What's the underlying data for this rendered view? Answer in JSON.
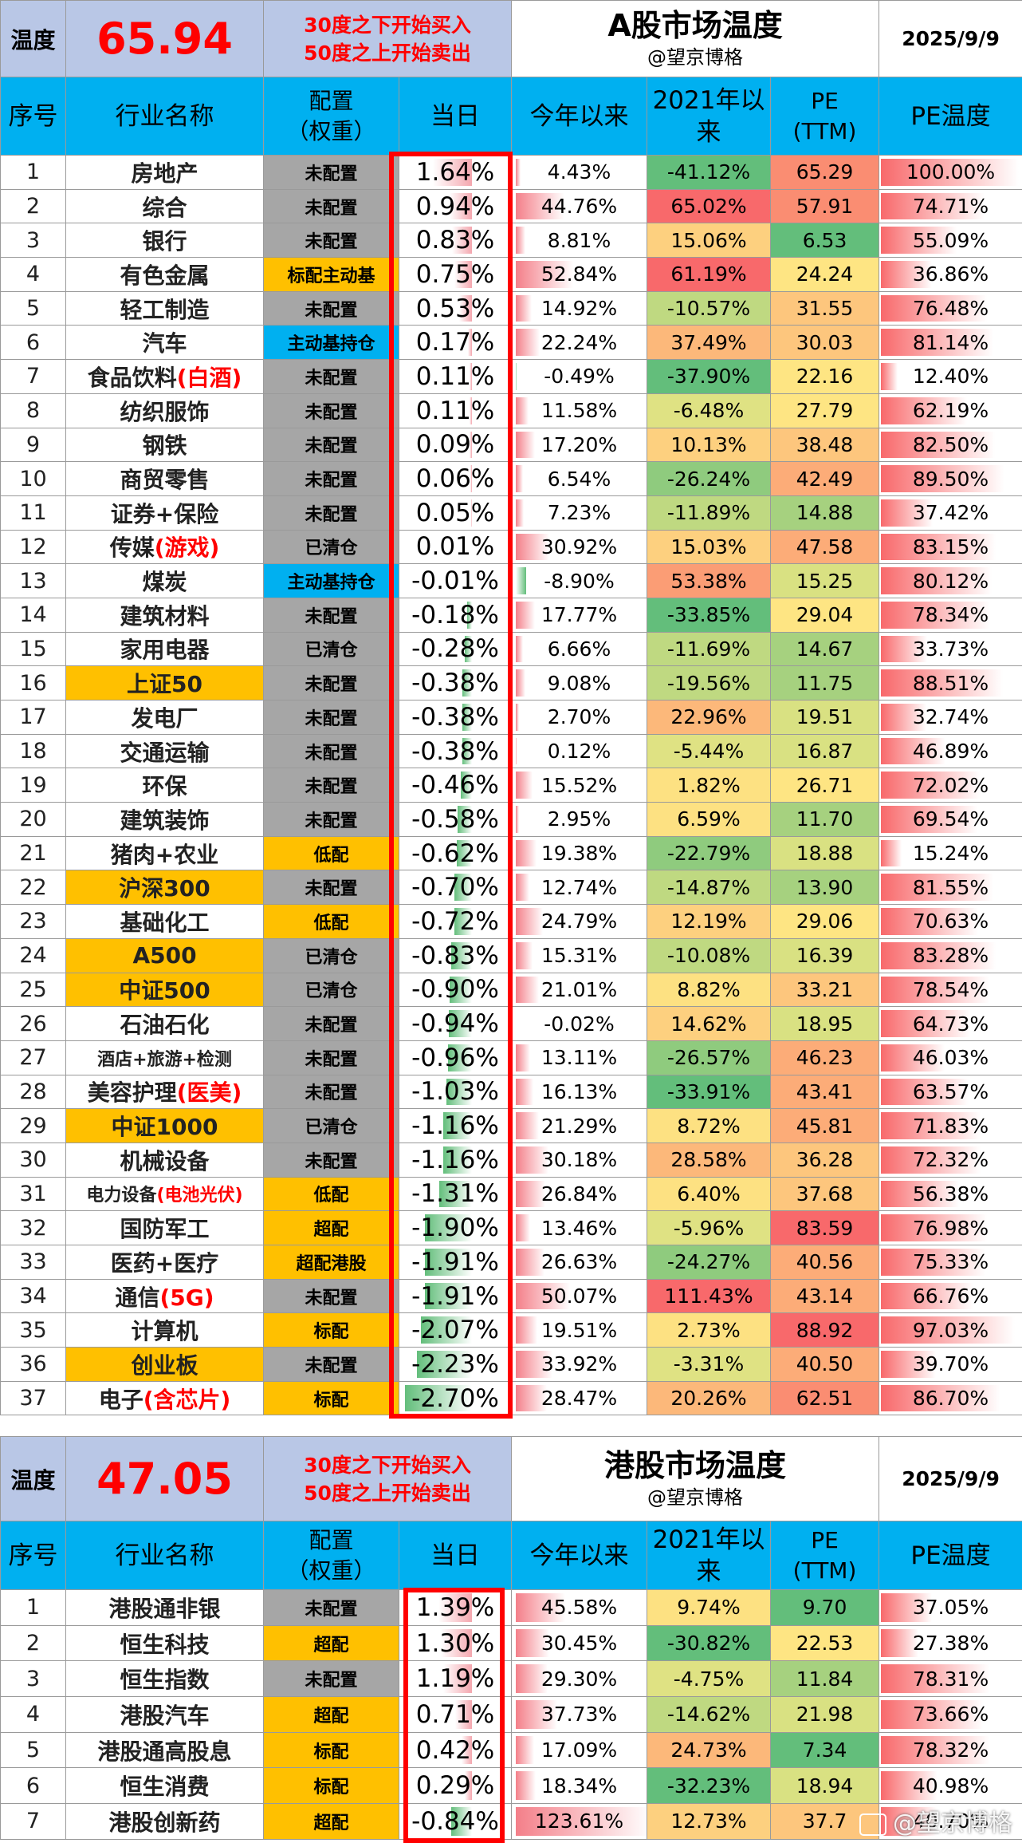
{
  "colors": {
    "header": "#00b0f0",
    "highlight": "#ffc000",
    "grey": "#a6a6a6",
    "title_bg": "#b9c7e6",
    "red": "#ff0000"
  },
  "a_share": {
    "temp_label": "温度",
    "temp_value": "65.94",
    "rule_line1": "30度之下开始买入",
    "rule_line2": "50度之上开始卖出",
    "title": "A股市场温度",
    "author": "@望京博格",
    "date": "2025/9/9",
    "headers": {
      "idx": "序号",
      "name": "行业名称",
      "alloc1": "配置",
      "alloc2": "（权重）",
      "day": "当日",
      "ytd": "今年以来",
      "since1": "2021年以",
      "since2": "来",
      "pe1": "PE",
      "pe2": "(TTM)",
      "pet": "PE温度"
    },
    "rows": [
      {
        "idx": "1",
        "name": "房地产",
        "sub": "",
        "alloc": "未配置",
        "aclass": "",
        "nclass": "",
        "day": "1.64%",
        "ytd": "4.43%",
        "since": "-41.12%",
        "pe": "65.29",
        "pet": "100.00%"
      },
      {
        "idx": "2",
        "name": "综合",
        "sub": "",
        "alloc": "未配置",
        "aclass": "",
        "nclass": "",
        "day": "0.94%",
        "ytd": "44.76%",
        "since": "65.02%",
        "pe": "57.91",
        "pet": "74.71%"
      },
      {
        "idx": "3",
        "name": "银行",
        "sub": "",
        "alloc": "未配置",
        "aclass": "",
        "nclass": "",
        "day": "0.83%",
        "ytd": "8.81%",
        "since": "15.06%",
        "pe": "6.53",
        "pet": "55.09%"
      },
      {
        "idx": "4",
        "name": "有色金属",
        "sub": "",
        "alloc": "标配主动基",
        "aclass": "hl",
        "nclass": "",
        "day": "0.75%",
        "ytd": "52.84%",
        "since": "61.19%",
        "pe": "24.24",
        "pet": "36.86%"
      },
      {
        "idx": "5",
        "name": "轻工制造",
        "sub": "",
        "alloc": "未配置",
        "aclass": "",
        "nclass": "",
        "day": "0.53%",
        "ytd": "14.92%",
        "since": "-10.57%",
        "pe": "31.55",
        "pet": "76.48%"
      },
      {
        "idx": "6",
        "name": "汽车",
        "sub": "",
        "alloc": "主动基持仓",
        "aclass": "blue",
        "nclass": "",
        "day": "0.17%",
        "ytd": "22.24%",
        "since": "37.49%",
        "pe": "30.03",
        "pet": "81.14%"
      },
      {
        "idx": "7",
        "name": "食品饮料",
        "sub": "(白酒)",
        "alloc": "未配置",
        "aclass": "",
        "nclass": "",
        "day": "0.11%",
        "ytd": "-0.49%",
        "since": "-37.90%",
        "pe": "22.16",
        "pet": "12.40%"
      },
      {
        "idx": "8",
        "name": "纺织服饰",
        "sub": "",
        "alloc": "未配置",
        "aclass": "",
        "nclass": "",
        "day": "0.11%",
        "ytd": "11.58%",
        "since": "-6.48%",
        "pe": "27.79",
        "pet": "62.19%"
      },
      {
        "idx": "9",
        "name": "钢铁",
        "sub": "",
        "alloc": "未配置",
        "aclass": "",
        "nclass": "",
        "day": "0.09%",
        "ytd": "17.20%",
        "since": "10.13%",
        "pe": "38.48",
        "pet": "82.50%"
      },
      {
        "idx": "10",
        "name": "商贸零售",
        "sub": "",
        "alloc": "未配置",
        "aclass": "",
        "nclass": "",
        "day": "0.06%",
        "ytd": "6.54%",
        "since": "-26.24%",
        "pe": "42.49",
        "pet": "89.50%"
      },
      {
        "idx": "11",
        "name": "证券+保险",
        "sub": "",
        "alloc": "未配置",
        "aclass": "",
        "nclass": "",
        "day": "0.05%",
        "ytd": "7.23%",
        "since": "-11.89%",
        "pe": "14.88",
        "pet": "37.42%"
      },
      {
        "idx": "12",
        "name": "传媒",
        "sub": "(游戏)",
        "alloc": "已清仓",
        "aclass": "",
        "nclass": "",
        "day": "0.01%",
        "ytd": "30.92%",
        "since": "15.03%",
        "pe": "47.58",
        "pet": "83.15%"
      },
      {
        "idx": "13",
        "name": "煤炭",
        "sub": "",
        "alloc": "主动基持仓",
        "aclass": "blue",
        "nclass": "",
        "day": "-0.01%",
        "ytd": "-8.90%",
        "since": "53.38%",
        "pe": "15.25",
        "pet": "80.12%"
      },
      {
        "idx": "14",
        "name": "建筑材料",
        "sub": "",
        "alloc": "未配置",
        "aclass": "",
        "nclass": "",
        "day": "-0.18%",
        "ytd": "17.77%",
        "since": "-33.85%",
        "pe": "29.04",
        "pet": "78.34%"
      },
      {
        "idx": "15",
        "name": "家用电器",
        "sub": "",
        "alloc": "已清仓",
        "aclass": "",
        "nclass": "",
        "day": "-0.28%",
        "ytd": "6.66%",
        "since": "-11.69%",
        "pe": "14.67",
        "pet": "33.73%"
      },
      {
        "idx": "16",
        "name": "上证50",
        "sub": "",
        "alloc": "未配置",
        "aclass": "",
        "nclass": "hl",
        "day": "-0.38%",
        "ytd": "9.08%",
        "since": "-19.56%",
        "pe": "11.75",
        "pet": "88.51%"
      },
      {
        "idx": "17",
        "name": "发电厂",
        "sub": "",
        "alloc": "未配置",
        "aclass": "",
        "nclass": "",
        "day": "-0.38%",
        "ytd": "2.70%",
        "since": "22.96%",
        "pe": "19.51",
        "pet": "32.74%"
      },
      {
        "idx": "18",
        "name": "交通运输",
        "sub": "",
        "alloc": "未配置",
        "aclass": "",
        "nclass": "",
        "day": "-0.38%",
        "ytd": "0.12%",
        "since": "-5.44%",
        "pe": "16.87",
        "pet": "46.89%"
      },
      {
        "idx": "19",
        "name": "环保",
        "sub": "",
        "alloc": "未配置",
        "aclass": "",
        "nclass": "",
        "day": "-0.46%",
        "ytd": "15.52%",
        "since": "1.82%",
        "pe": "26.71",
        "pet": "72.02%"
      },
      {
        "idx": "20",
        "name": "建筑装饰",
        "sub": "",
        "alloc": "未配置",
        "aclass": "",
        "nclass": "",
        "day": "-0.58%",
        "ytd": "2.95%",
        "since": "6.59%",
        "pe": "11.70",
        "pet": "69.54%"
      },
      {
        "idx": "21",
        "name": "猪肉+农业",
        "sub": "",
        "alloc": "低配",
        "aclass": "hl",
        "nclass": "",
        "day": "-0.62%",
        "ytd": "19.38%",
        "since": "-22.79%",
        "pe": "18.88",
        "pet": "15.24%"
      },
      {
        "idx": "22",
        "name": "沪深300",
        "sub": "",
        "alloc": "未配置",
        "aclass": "",
        "nclass": "hl",
        "day": "-0.70%",
        "ytd": "12.74%",
        "since": "-14.87%",
        "pe": "13.90",
        "pet": "81.55%"
      },
      {
        "idx": "23",
        "name": "基础化工",
        "sub": "",
        "alloc": "低配",
        "aclass": "hl",
        "nclass": "",
        "day": "-0.72%",
        "ytd": "24.79%",
        "since": "12.19%",
        "pe": "29.06",
        "pet": "70.63%"
      },
      {
        "idx": "24",
        "name": "A500",
        "sub": "",
        "alloc": "已清仓",
        "aclass": "",
        "nclass": "hl",
        "day": "-0.83%",
        "ytd": "15.31%",
        "since": "-10.08%",
        "pe": "16.39",
        "pet": "83.28%"
      },
      {
        "idx": "25",
        "name": "中证500",
        "sub": "",
        "alloc": "已清仓",
        "aclass": "",
        "nclass": "hl",
        "day": "-0.90%",
        "ytd": "21.01%",
        "since": "8.82%",
        "pe": "33.21",
        "pet": "78.54%"
      },
      {
        "idx": "26",
        "name": "石油石化",
        "sub": "",
        "alloc": "未配置",
        "aclass": "",
        "nclass": "",
        "day": "-0.94%",
        "ytd": "-0.02%",
        "since": "14.62%",
        "pe": "18.95",
        "pet": "64.73%"
      },
      {
        "idx": "27",
        "name": "酒店+旅游+检测",
        "sub": "",
        "alloc": "未配置",
        "aclass": "",
        "nclass": "small",
        "day": "-0.96%",
        "ytd": "13.11%",
        "since": "-26.57%",
        "pe": "46.23",
        "pet": "46.03%"
      },
      {
        "idx": "28",
        "name": "美容护理",
        "sub": "(医美)",
        "alloc": "未配置",
        "aclass": "",
        "nclass": "",
        "day": "-1.03%",
        "ytd": "16.13%",
        "since": "-33.91%",
        "pe": "43.41",
        "pet": "63.57%"
      },
      {
        "idx": "29",
        "name": "中证1000",
        "sub": "",
        "alloc": "已清仓",
        "aclass": "",
        "nclass": "hl",
        "day": "-1.16%",
        "ytd": "21.29%",
        "since": "8.72%",
        "pe": "45.81",
        "pet": "71.83%"
      },
      {
        "idx": "30",
        "name": "机械设备",
        "sub": "",
        "alloc": "未配置",
        "aclass": "",
        "nclass": "",
        "day": "-1.16%",
        "ytd": "30.18%",
        "since": "28.58%",
        "pe": "36.28",
        "pet": "72.32%"
      },
      {
        "idx": "31",
        "name": "电力设备",
        "sub": "(电池光伏)",
        "alloc": "低配",
        "aclass": "hl",
        "nclass": "small",
        "day": "-1.31%",
        "ytd": "26.84%",
        "since": "6.40%",
        "pe": "37.68",
        "pet": "56.38%"
      },
      {
        "idx": "32",
        "name": "国防军工",
        "sub": "",
        "alloc": "超配",
        "aclass": "hl",
        "nclass": "",
        "day": "-1.90%",
        "ytd": "13.46%",
        "since": "-5.96%",
        "pe": "83.59",
        "pet": "76.98%"
      },
      {
        "idx": "33",
        "name": "医药+医疗",
        "sub": "",
        "alloc": "超配港股",
        "aclass": "hl",
        "nclass": "",
        "day": "-1.91%",
        "ytd": "26.63%",
        "since": "-24.27%",
        "pe": "40.56",
        "pet": "75.33%"
      },
      {
        "idx": "34",
        "name": "通信",
        "sub": "(5G)",
        "alloc": "未配置",
        "aclass": "",
        "nclass": "",
        "day": "-1.91%",
        "ytd": "50.07%",
        "since": "111.43%",
        "pe": "43.14",
        "pet": "66.76%"
      },
      {
        "idx": "35",
        "name": "计算机",
        "sub": "",
        "alloc": "标配",
        "aclass": "hl",
        "nclass": "",
        "day": "-2.07%",
        "ytd": "19.51%",
        "since": "2.73%",
        "pe": "88.92",
        "pet": "97.03%"
      },
      {
        "idx": "36",
        "name": "创业板",
        "sub": "",
        "alloc": "未配置",
        "aclass": "",
        "nclass": "hl",
        "day": "-2.23%",
        "ytd": "33.92%",
        "since": "-3.31%",
        "pe": "40.50",
        "pet": "39.70%"
      },
      {
        "idx": "37",
        "name": "电子",
        "sub": "(含芯片)",
        "alloc": "标配",
        "aclass": "hl",
        "nclass": "",
        "day": "-2.70%",
        "ytd": "28.47%",
        "since": "20.26%",
        "pe": "62.51",
        "pet": "86.70%"
      }
    ]
  },
  "hk_share": {
    "temp_label": "温度",
    "temp_value": "47.05",
    "rule_line1": "30度之下开始买入",
    "rule_line2": "50度之上开始卖出",
    "title": "港股市场温度",
    "author": "@望京博格",
    "date": "2025/9/9",
    "headers": {
      "idx": "序号",
      "name": "行业名称",
      "alloc1": "配置",
      "alloc2": "（权重）",
      "day": "当日",
      "ytd": "今年以来",
      "since1": "2021年以",
      "since2": "来",
      "pe1": "PE",
      "pe2": "(TTM)",
      "pet": "PE温度"
    },
    "rows": [
      {
        "idx": "1",
        "name": "港股通非银",
        "sub": "",
        "alloc": "未配置",
        "aclass": "",
        "nclass": "",
        "day": "1.39%",
        "ytd": "45.58%",
        "since": "9.74%",
        "pe": "9.70",
        "pet": "37.05%"
      },
      {
        "idx": "2",
        "name": "恒生科技",
        "sub": "",
        "alloc": "超配",
        "aclass": "hl",
        "nclass": "",
        "day": "1.30%",
        "ytd": "30.45%",
        "since": "-30.82%",
        "pe": "22.53",
        "pet": "27.38%"
      },
      {
        "idx": "3",
        "name": "恒生指数",
        "sub": "",
        "alloc": "未配置",
        "aclass": "",
        "nclass": "",
        "day": "1.19%",
        "ytd": "29.30%",
        "since": "-4.75%",
        "pe": "11.84",
        "pet": "78.31%"
      },
      {
        "idx": "4",
        "name": "港股汽车",
        "sub": "",
        "alloc": "超配",
        "aclass": "hl",
        "nclass": "",
        "day": "0.71%",
        "ytd": "37.73%",
        "since": "-14.62%",
        "pe": "21.98",
        "pet": "73.66%"
      },
      {
        "idx": "5",
        "name": "港股通高股息",
        "sub": "",
        "alloc": "标配",
        "aclass": "hl",
        "nclass": "",
        "day": "0.42%",
        "ytd": "17.09%",
        "since": "24.73%",
        "pe": "7.34",
        "pet": "78.32%"
      },
      {
        "idx": "6",
        "name": "恒生消费",
        "sub": "",
        "alloc": "标配",
        "aclass": "hl",
        "nclass": "",
        "day": "0.29%",
        "ytd": "18.34%",
        "since": "-32.23%",
        "pe": "18.94",
        "pet": "40.98%"
      },
      {
        "idx": "7",
        "name": "港股创新药",
        "sub": "",
        "alloc": "超配",
        "aclass": "hl",
        "nclass": "",
        "day": "-0.84%",
        "ytd": "123.61%",
        "since": "12.73%",
        "pe": "37.7",
        "pet": "40.70%"
      }
    ]
  },
  "watermark": "@望京博格"
}
